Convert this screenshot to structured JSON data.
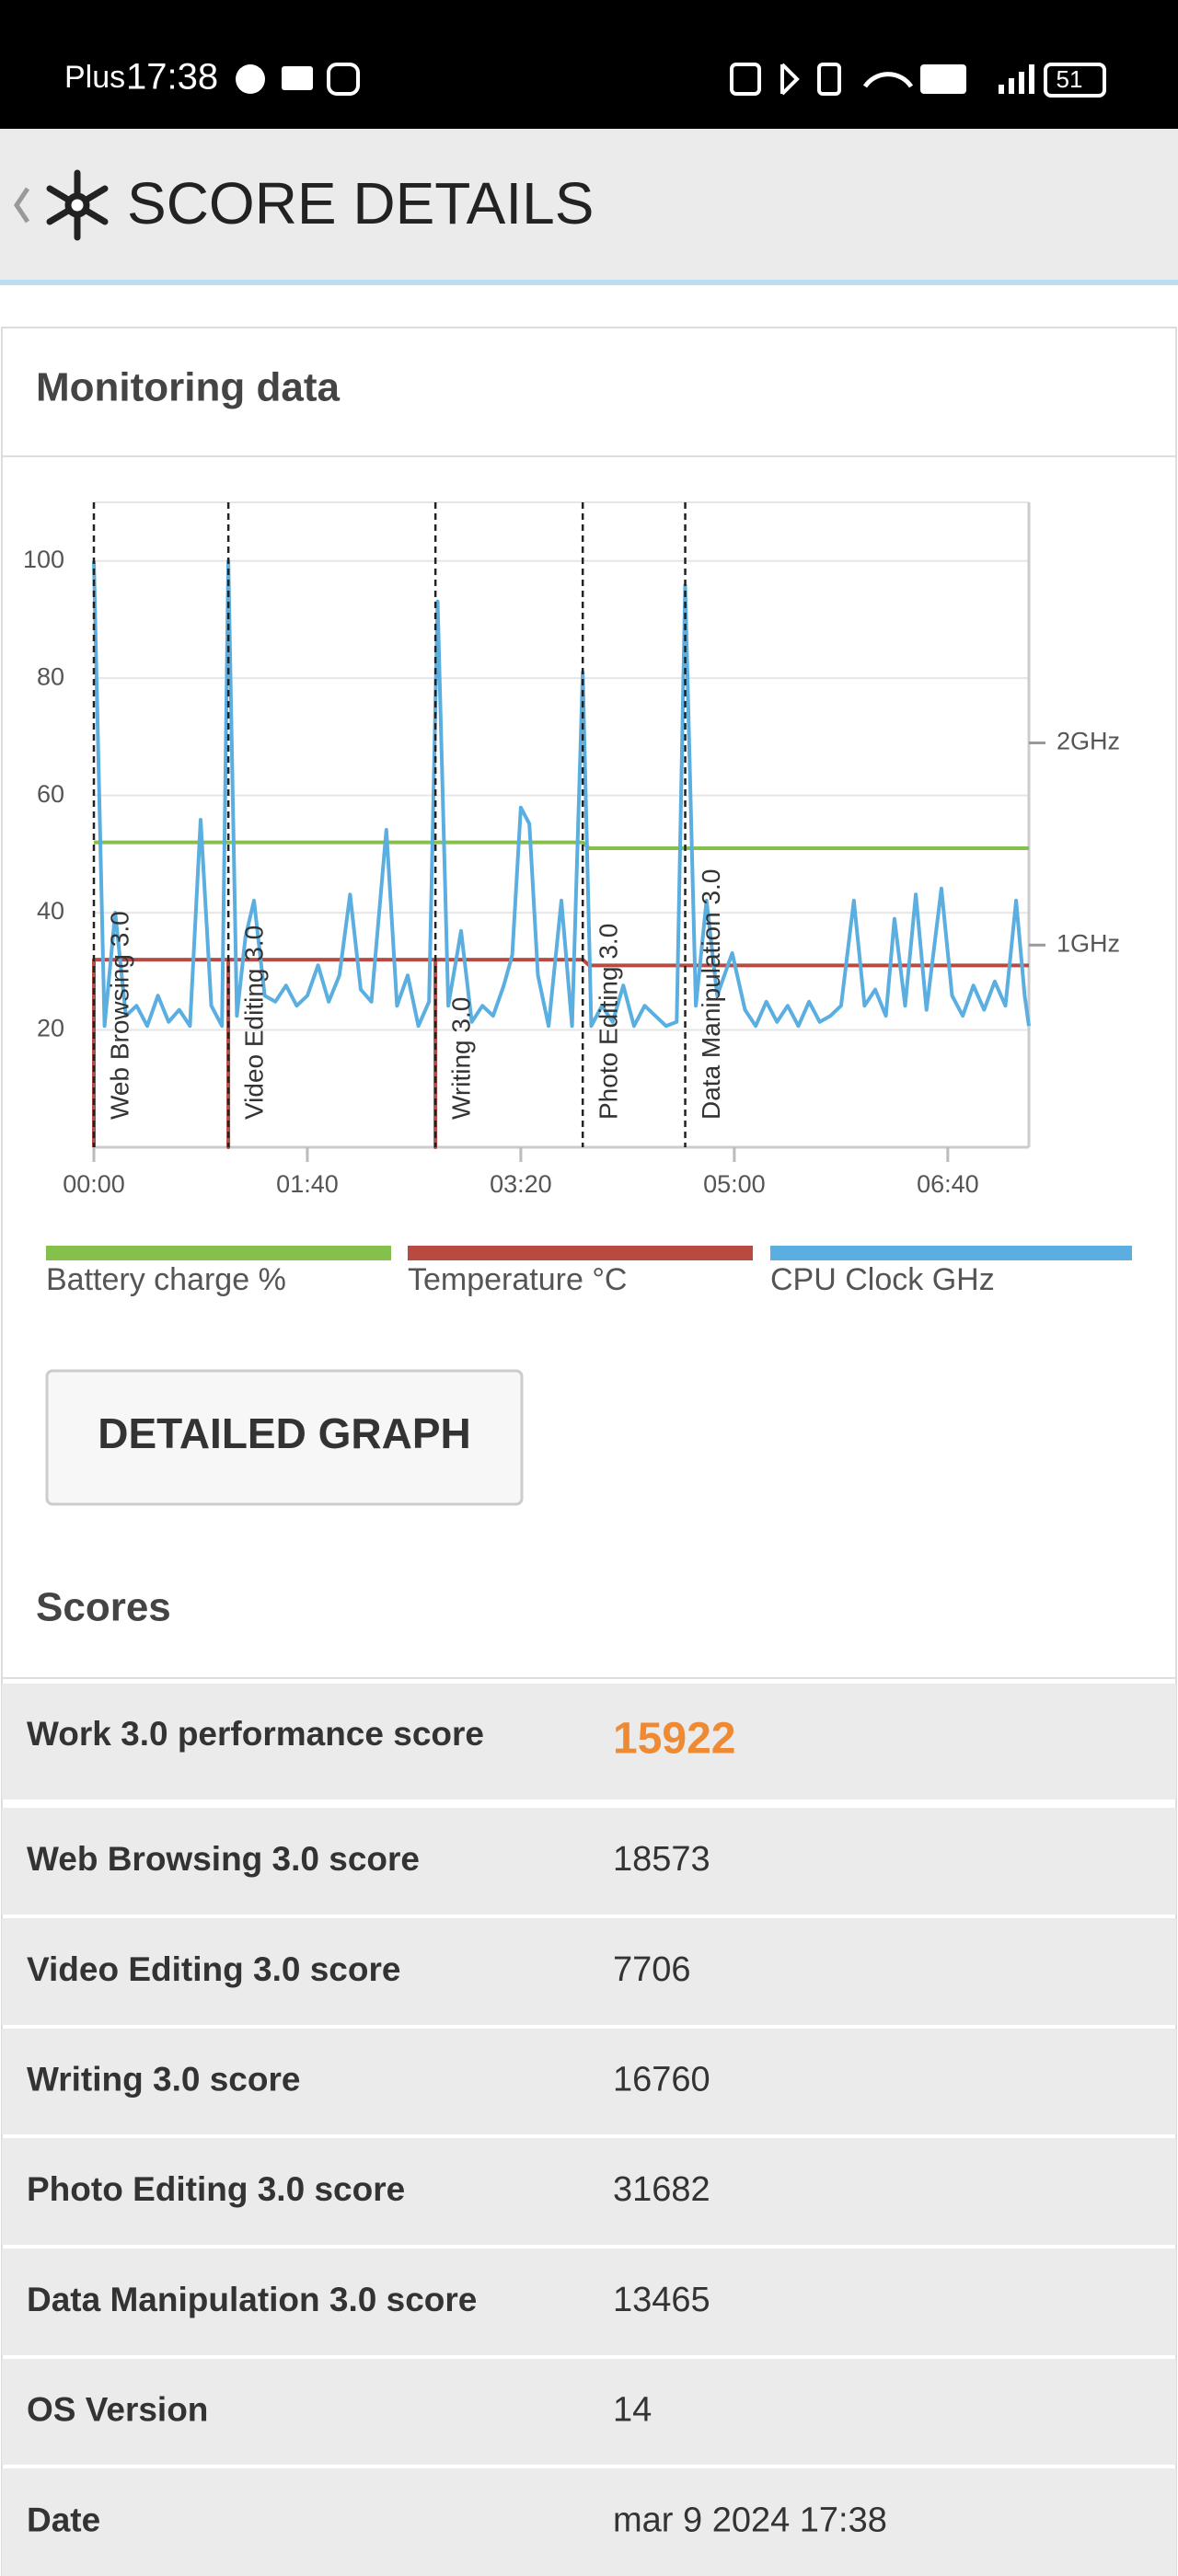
{
  "status_bar": {
    "carrier": "Plus",
    "time": "17:38",
    "battery": "51"
  },
  "header": {
    "title": "SCORE DETAILS"
  },
  "monitoring": {
    "title": "Monitoring data"
  },
  "chart_data": {
    "type": "line",
    "xlim": [
      0,
      438
    ],
    "xticks": [
      {
        "value": 0,
        "label": "00:00"
      },
      {
        "value": 100,
        "label": "01:40"
      },
      {
        "value": 200,
        "label": "03:20"
      },
      {
        "value": 300,
        "label": "05:00"
      },
      {
        "value": 400,
        "label": "06:40"
      }
    ],
    "ylim": [
      0,
      110
    ],
    "yticks": [
      20,
      40,
      60,
      80,
      100
    ],
    "y2lim": [
      0,
      3.19
    ],
    "y2ticks": [
      {
        "value": 1,
        "label": "1GHz"
      },
      {
        "value": 2,
        "label": "2GHz"
      }
    ],
    "grid": true,
    "annotations": [
      {
        "x": 0,
        "label": "Web Browsing 3.0"
      },
      {
        "x": 63,
        "label": "Video Editing 3.0"
      },
      {
        "x": 160,
        "label": "Writing 3.0"
      },
      {
        "x": 229,
        "label": "Photo Editing 3.0"
      },
      {
        "x": 277,
        "label": "Data Manipulation 3.0"
      }
    ],
    "series": [
      {
        "name": "Battery charge %",
        "color": "#86c04c",
        "x": [
          0,
          229,
          232,
          438
        ],
        "values": [
          52,
          52,
          51,
          51
        ]
      },
      {
        "name": "Temperature °C",
        "color": "#b94a42",
        "x": [
          0,
          0,
          63,
          63,
          63,
          160,
          160,
          160,
          229,
          232,
          438
        ],
        "values": [
          0,
          32,
          32,
          0,
          32,
          32,
          0,
          32,
          32,
          31,
          31
        ]
      },
      {
        "name": "CPU Clock GHz",
        "color": "#5aaee0",
        "axis": "y2",
        "x": [
          0,
          5,
          10,
          15,
          20,
          25,
          30,
          35,
          40,
          45,
          50,
          55,
          60,
          63,
          67,
          71,
          75,
          80,
          85,
          90,
          95,
          100,
          105,
          110,
          115,
          120,
          125,
          130,
          137,
          142,
          147,
          152,
          157,
          161,
          166,
          172,
          177,
          182,
          187,
          192,
          196,
          200,
          204,
          208,
          213,
          219,
          224,
          229,
          233,
          238,
          243,
          248,
          253,
          258,
          263,
          268,
          273,
          277,
          282,
          287,
          292,
          299,
          305,
          310,
          315,
          320,
          325,
          330,
          335,
          340,
          345,
          350,
          356,
          361,
          366,
          371,
          375,
          380,
          385,
          390,
          397,
          402,
          407,
          412,
          417,
          422,
          427,
          432,
          436,
          438
        ],
        "values": [
          2.9,
          0.6,
          1.16,
          0.65,
          0.7,
          0.6,
          0.75,
          0.62,
          0.68,
          0.6,
          1.62,
          0.7,
          0.6,
          2.9,
          0.65,
          1.04,
          1.22,
          0.75,
          0.72,
          0.8,
          0.7,
          0.75,
          0.9,
          0.72,
          0.85,
          1.25,
          0.78,
          0.72,
          1.57,
          0.7,
          0.85,
          0.6,
          0.72,
          2.7,
          0.7,
          1.07,
          0.62,
          0.7,
          0.65,
          0.8,
          0.95,
          1.68,
          1.6,
          0.85,
          0.6,
          1.22,
          0.6,
          2.35,
          0.6,
          0.7,
          0.62,
          0.8,
          0.6,
          0.7,
          0.65,
          0.6,
          0.62,
          2.78,
          0.7,
          1.22,
          0.75,
          0.96,
          0.68,
          0.6,
          0.72,
          0.62,
          0.7,
          0.6,
          0.72,
          0.62,
          0.65,
          0.7,
          1.22,
          0.7,
          0.78,
          0.65,
          1.13,
          0.7,
          1.25,
          0.68,
          1.28,
          0.75,
          0.65,
          0.8,
          0.68,
          0.82,
          0.7,
          1.22,
          0.75,
          0.6
        ]
      }
    ]
  },
  "button": {
    "label": "DETAILED GRAPH"
  },
  "scores": {
    "title": "Scores",
    "rows": [
      [
        "Work 3.0 performance score",
        "15922"
      ],
      [
        "Web Browsing 3.0 score",
        "18573"
      ],
      [
        "Video Editing 3.0 score",
        "7706"
      ],
      [
        "Writing 3.0 score",
        "16760"
      ],
      [
        "Photo Editing 3.0 score",
        "31682"
      ],
      [
        "Data Manipulation 3.0 score",
        "13465"
      ],
      [
        "OS Version",
        "14"
      ],
      [
        "Date",
        "mar 9 2024 17:38"
      ]
    ]
  }
}
